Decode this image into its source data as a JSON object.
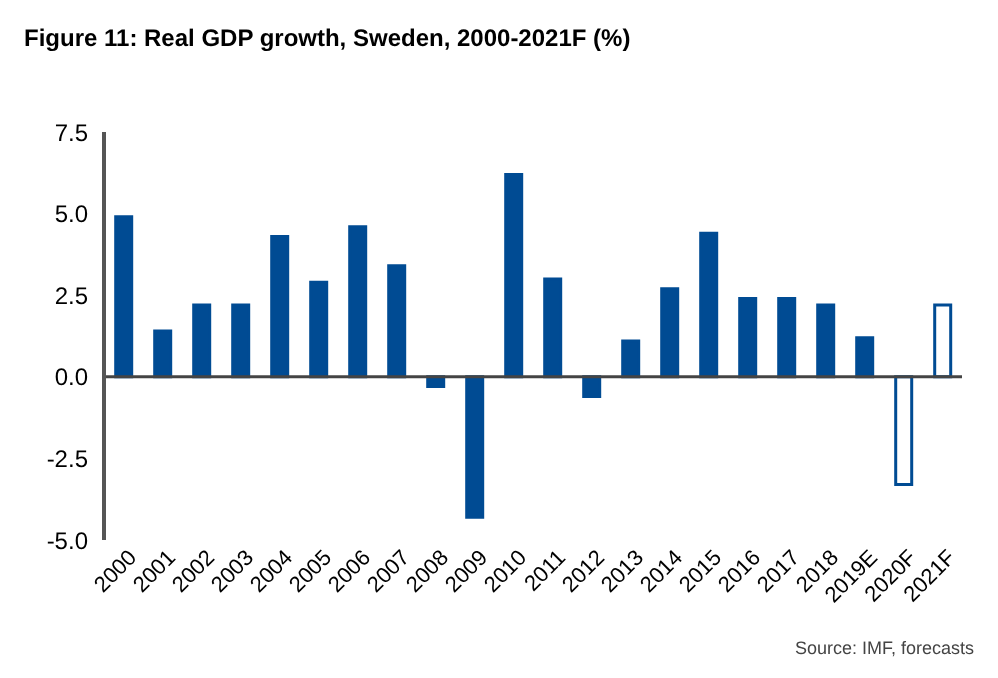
{
  "chart_data": {
    "type": "bar",
    "title": "Figure 11: Real GDP growth, Sweden, 2000-2021F (%)",
    "categories": [
      "2000",
      "2001",
      "2002",
      "2003",
      "2004",
      "2005",
      "2006",
      "2007",
      "2008",
      "2009",
      "2010",
      "2011",
      "2012",
      "2013",
      "2014",
      "2015",
      "2016",
      "2017",
      "2018",
      "2019E",
      "2020F",
      "2021F"
    ],
    "values": [
      4.9,
      1.4,
      2.2,
      2.2,
      4.3,
      2.9,
      4.6,
      3.4,
      -0.3,
      -4.3,
      6.2,
      3.0,
      -0.6,
      1.1,
      2.7,
      4.4,
      2.4,
      2.4,
      2.2,
      1.2,
      -3.3,
      2.2
    ],
    "colors": [
      "#004b93",
      "#004b93",
      "#004b93",
      "#004b93",
      "#004b93",
      "#004b93",
      "#004b93",
      "#004b93",
      "#004b93",
      "#004b93",
      "#004b93",
      "#004b93",
      "#004b93",
      "#004b93",
      "#004b93",
      "#004b93",
      "#004b93",
      "#004b93",
      "#004b93",
      "#004b93",
      "#ffffff",
      "#ffffff"
    ],
    "ylim": [
      -5,
      7.5
    ],
    "yticks": [
      {
        "value": -5,
        "label": "-5.0"
      },
      {
        "value": -2.5,
        "label": "-2.5"
      },
      {
        "value": 0,
        "label": "0.0"
      },
      {
        "value": 2.5,
        "label": "2.5"
      },
      {
        "value": 5,
        "label": "5.0"
      },
      {
        "value": 7.5,
        "label": "7.5"
      }
    ],
    "annotations": [
      "Source: IMF, forecasts"
    ]
  }
}
